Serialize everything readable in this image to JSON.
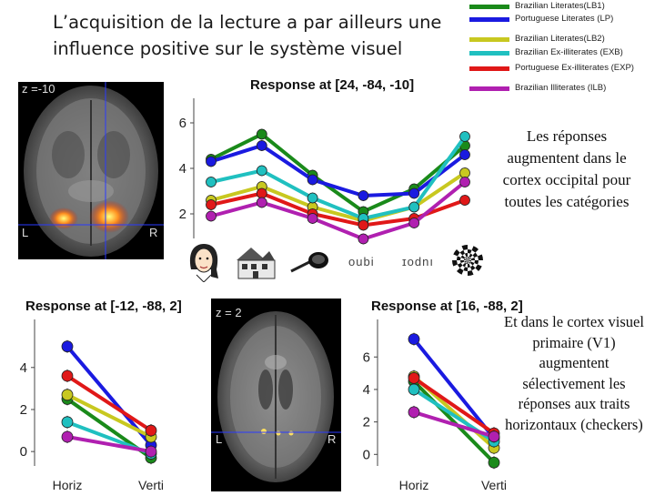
{
  "slide": {
    "title": "L’acquisition de la lecture a par ailleurs une influence positive sur le système visuel",
    "text_occipital": "Les réponses augmentent dans le cortex occipital pour toutes les catégories",
    "text_v1": "Et dans le cortex visuel primaire (V1) augmentent sélectivement les réponses aux traits horizontaux (checkers)"
  },
  "legend": [
    {
      "label": "Brazilian Literates(LB1)",
      "color": "#1a8a1a"
    },
    {
      "label": "Portuguese Literates (LP)",
      "color": "#1a1ae0"
    },
    {
      "label": "Brazilian Literates(LB2)",
      "color": "#c8c820"
    },
    {
      "label": "Brazilian Ex-illiterates (EXB)",
      "color": "#20c0c0"
    },
    {
      "label": "Portuguese Ex-illiterates (EXP)",
      "color": "#e01818"
    },
    {
      "label": "Brazilian Illiterates (ILB)",
      "color": "#b020b0"
    }
  ],
  "brain_top": {
    "slice_label": "z =-10",
    "left_label": "L",
    "right_label": "R"
  },
  "brain_bottom": {
    "slice_label": "z = 2",
    "left_label": "L",
    "right_label": "R"
  },
  "stimuli": {
    "word_label": "oubi",
    "mirror_label": "ɪodnı"
  },
  "chart_data": [
    {
      "type": "line",
      "title": "Response at [24, -84, -10]",
      "categories": [
        "faces",
        "houses",
        "tools",
        "strings",
        "false fonts",
        "checkers"
      ],
      "ylim": [
        1,
        7
      ],
      "yticks": [
        2,
        4,
        6
      ],
      "series": [
        {
          "name": "Brazilian Literates(LB1)",
          "color": "#1a8a1a",
          "values": [
            4.4,
            5.5,
            3.7,
            2.1,
            3.1,
            5.0
          ]
        },
        {
          "name": "Portuguese Literates (LP)",
          "color": "#1a1ae0",
          "values": [
            4.3,
            5.0,
            3.5,
            2.8,
            2.9,
            4.6
          ]
        },
        {
          "name": "Brazilian Literates(LB2)",
          "color": "#c8c820",
          "values": [
            2.6,
            3.2,
            2.3,
            1.7,
            2.3,
            3.8
          ]
        },
        {
          "name": "Brazilian Ex-illiterates (EXB)",
          "color": "#20c0c0",
          "values": [
            3.4,
            3.9,
            2.7,
            1.8,
            2.3,
            5.4
          ]
        },
        {
          "name": "Portuguese Ex-illiterates (EXP)",
          "color": "#e01818",
          "values": [
            2.4,
            2.9,
            2.0,
            1.5,
            1.8,
            2.6
          ]
        },
        {
          "name": "Brazilian Illiterates (ILB)",
          "color": "#b020b0",
          "values": [
            1.9,
            2.5,
            1.8,
            0.9,
            1.6,
            3.4
          ]
        }
      ]
    },
    {
      "type": "line",
      "title": "Response at [-12, -88, 2]",
      "categories": [
        "Horiz",
        "Verti"
      ],
      "ylim": [
        -0.6,
        6.2
      ],
      "yticks": [
        0,
        2,
        4
      ],
      "series": [
        {
          "name": "Brazilian Literates(LB1)",
          "color": "#1a8a1a",
          "values": [
            2.5,
            -0.3
          ]
        },
        {
          "name": "Portuguese Literates (LP)",
          "color": "#1a1ae0",
          "values": [
            5.0,
            0.3
          ]
        },
        {
          "name": "Brazilian Literates(LB2)",
          "color": "#c8c820",
          "values": [
            2.7,
            0.7
          ]
        },
        {
          "name": "Brazilian Ex-illiterates (EXB)",
          "color": "#20c0c0",
          "values": [
            1.4,
            -0.1
          ]
        },
        {
          "name": "Portuguese Ex-illiterates (EXP)",
          "color": "#e01818",
          "values": [
            3.6,
            1.0
          ]
        },
        {
          "name": "Brazilian Illiterates (ILB)",
          "color": "#b020b0",
          "values": [
            0.7,
            0.0
          ]
        }
      ]
    },
    {
      "type": "line",
      "title": "Response at [16, -88, 2]",
      "categories": [
        "Horiz",
        "Verti"
      ],
      "ylim": [
        -0.6,
        8.2
      ],
      "yticks": [
        0,
        2,
        4,
        6
      ],
      "series": [
        {
          "name": "Brazilian Literates(LB1)",
          "color": "#1a8a1a",
          "values": [
            4.5,
            -0.5
          ]
        },
        {
          "name": "Portuguese Literates (LP)",
          "color": "#1a1ae0",
          "values": [
            7.1,
            1.0
          ]
        },
        {
          "name": "Brazilian Literates(LB2)",
          "color": "#c8c820",
          "values": [
            4.8,
            0.4
          ]
        },
        {
          "name": "Brazilian Ex-illiterates (EXB)",
          "color": "#20c0c0",
          "values": [
            4.0,
            0.8
          ]
        },
        {
          "name": "Portuguese Ex-illiterates (EXP)",
          "color": "#e01818",
          "values": [
            4.7,
            1.3
          ]
        },
        {
          "name": "Brazilian Illiterates (ILB)",
          "color": "#b020b0",
          "values": [
            2.6,
            1.1
          ]
        }
      ]
    }
  ]
}
